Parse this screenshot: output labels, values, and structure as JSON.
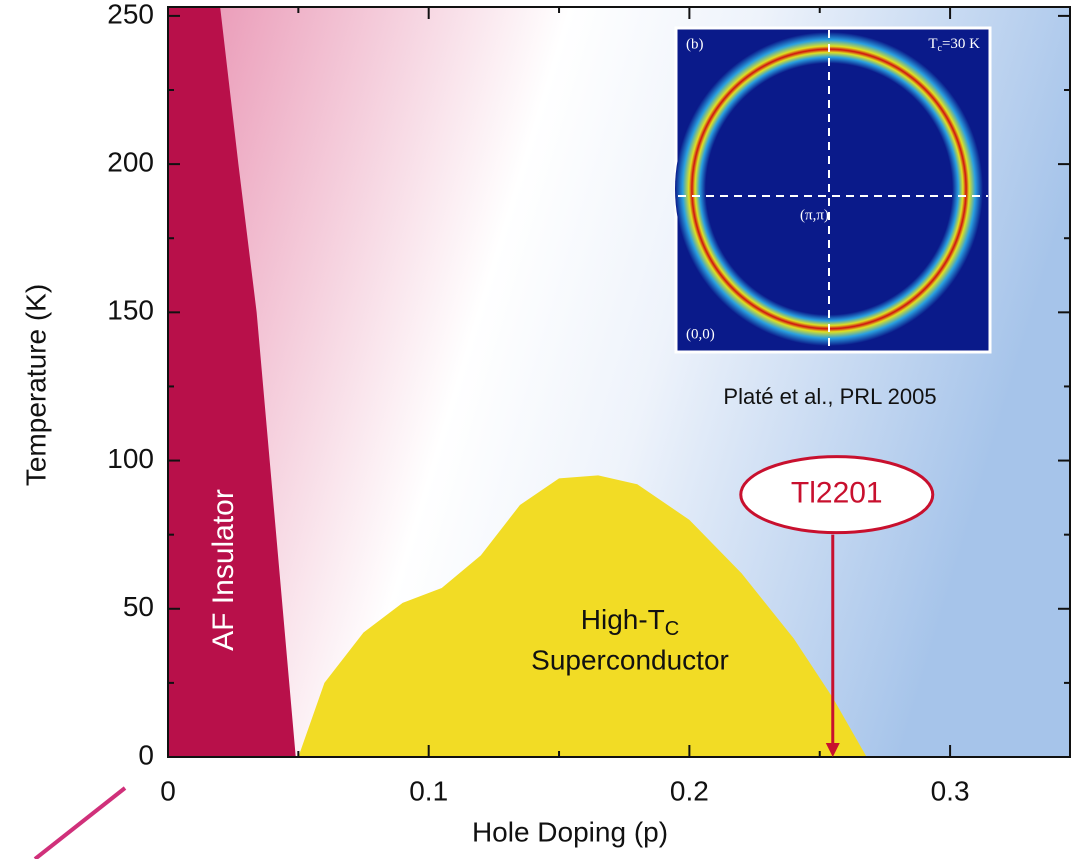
{
  "chart_data": {
    "type": "phase",
    "xlabel": "Hole Doping  (p)",
    "ylabel": "Temperature  (K)",
    "xlim": [
      0,
      0.346
    ],
    "ylim": [
      0,
      253
    ],
    "xticks": [
      0,
      0.1,
      0.2,
      0.3
    ],
    "yticks": [
      0,
      50,
      100,
      150,
      200,
      250
    ],
    "xminorticks": [
      0.05,
      0.15,
      0.25
    ],
    "yminorticks": [
      25,
      75,
      125,
      175,
      225
    ],
    "regions": [
      {
        "name": "AF Insulator",
        "color": "#b8104a",
        "x": [
          0,
          0,
          0.02,
          0.027,
          0.034,
          0.039,
          0.044,
          0.049
        ],
        "y": [
          0,
          253,
          253,
          200,
          150,
          100,
          50,
          0
        ]
      },
      {
        "name_parts": [
          "High-T",
          "C",
          "Superconductor"
        ],
        "color": "#f2dc25",
        "x": [
          0.05,
          0.06,
          0.075,
          0.09,
          0.105,
          0.12,
          0.135,
          0.15,
          0.165,
          0.18,
          0.2,
          0.22,
          0.24,
          0.255,
          0.268
        ],
        "y": [
          0,
          25,
          42,
          52,
          57,
          68,
          85,
          94,
          95,
          92,
          80,
          62,
          40,
          20,
          0
        ]
      }
    ],
    "annotation": {
      "text": "Tl2201",
      "color": "#c8102e",
      "x": 0.255,
      "y_from": 75,
      "y_to": 0
    },
    "inset": {
      "panel": "(b)",
      "tc_parts": [
        "T",
        "c",
        "=30 K"
      ],
      "center": "(π,π)",
      "corner": "(0,0)",
      "caption": "Platé et al., PRL 2005"
    }
  }
}
